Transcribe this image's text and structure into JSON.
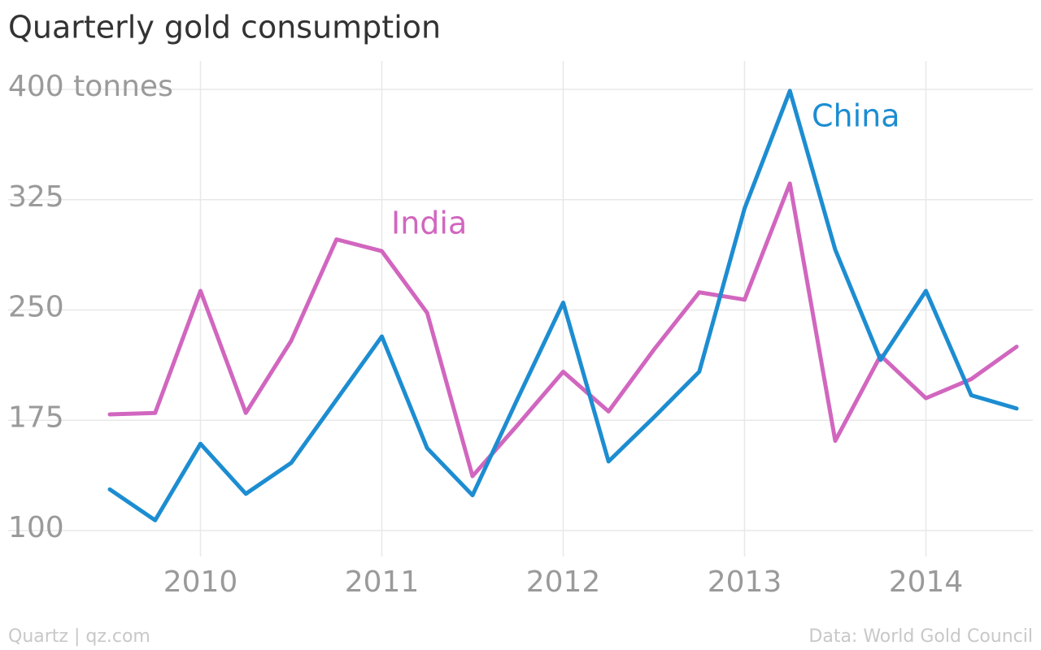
{
  "chart_data": {
    "type": "line",
    "title": "Quarterly gold consumption",
    "source": "Data: World Gold Council",
    "credit": "Quartz | qz.com",
    "x": [
      2009.5,
      2009.75,
      2010,
      2010.25,
      2010.5,
      2010.75,
      2011,
      2011.25,
      2011.5,
      2011.75,
      2012,
      2012.25,
      2012.5,
      2012.75,
      2013,
      2013.25,
      2013.5,
      2013.75,
      2014,
      2014.25,
      2014.5
    ],
    "xlim": [
      2009.5,
      2014.5
    ],
    "xticks": [
      2010,
      2011,
      2012,
      2013,
      2014
    ],
    "ylim": [
      100,
      400
    ],
    "yticks": [
      100,
      175,
      250,
      325,
      {
        "value": 400,
        "label": "400 tonnes"
      }
    ],
    "grid": true,
    "series": [
      {
        "name": "India",
        "color": "#d166bf",
        "values": [
          179,
          180,
          263,
          180,
          229,
          298,
          290,
          248,
          137,
          172,
          208,
          181,
          223,
          262,
          257,
          336,
          161,
          219,
          190,
          203,
          225
        ]
      },
      {
        "name": "China",
        "color": "#1d8dd1",
        "values": [
          128,
          107,
          159,
          125,
          146,
          189,
          232,
          156,
          124,
          190,
          255,
          147,
          177,
          208,
          319,
          399,
          291,
          216,
          263,
          192,
          183
        ]
      }
    ]
  }
}
